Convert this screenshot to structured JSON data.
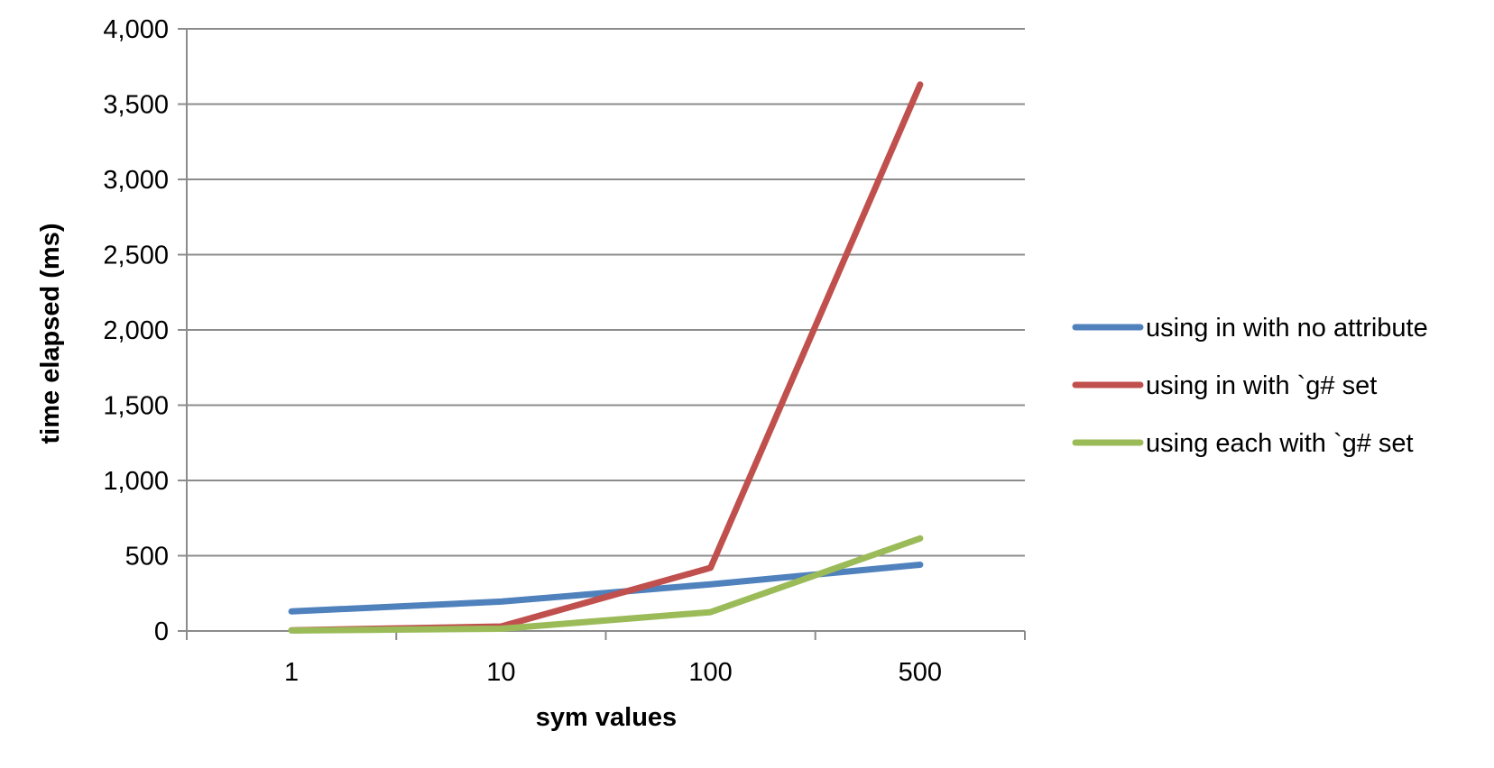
{
  "chart_data": {
    "type": "line",
    "title": "",
    "xlabel": "sym values",
    "ylabel": "time elapsed (ms)",
    "categories": [
      "1",
      "10",
      "100",
      "500"
    ],
    "ylim": [
      0,
      4000
    ],
    "y_ticks": [
      0,
      500,
      1000,
      1500,
      2000,
      2500,
      3000,
      3500,
      4000
    ],
    "y_tick_labels": [
      "0",
      "500",
      "1,000",
      "1,500",
      "2,000",
      "2,500",
      "3,000",
      "3,500",
      "4,000"
    ],
    "grid": "horizontal",
    "legend_position": "right",
    "series": [
      {
        "name": "using in with no attribute",
        "color": "#4f81bd",
        "values": [
          130,
          195,
          310,
          440
        ]
      },
      {
        "name": "using in with `g# set",
        "color": "#c0504d",
        "values": [
          5,
          30,
          420,
          3630
        ]
      },
      {
        "name": "using each with `g# set",
        "color": "#9bbb59",
        "values": [
          3,
          15,
          125,
          615
        ]
      }
    ]
  }
}
